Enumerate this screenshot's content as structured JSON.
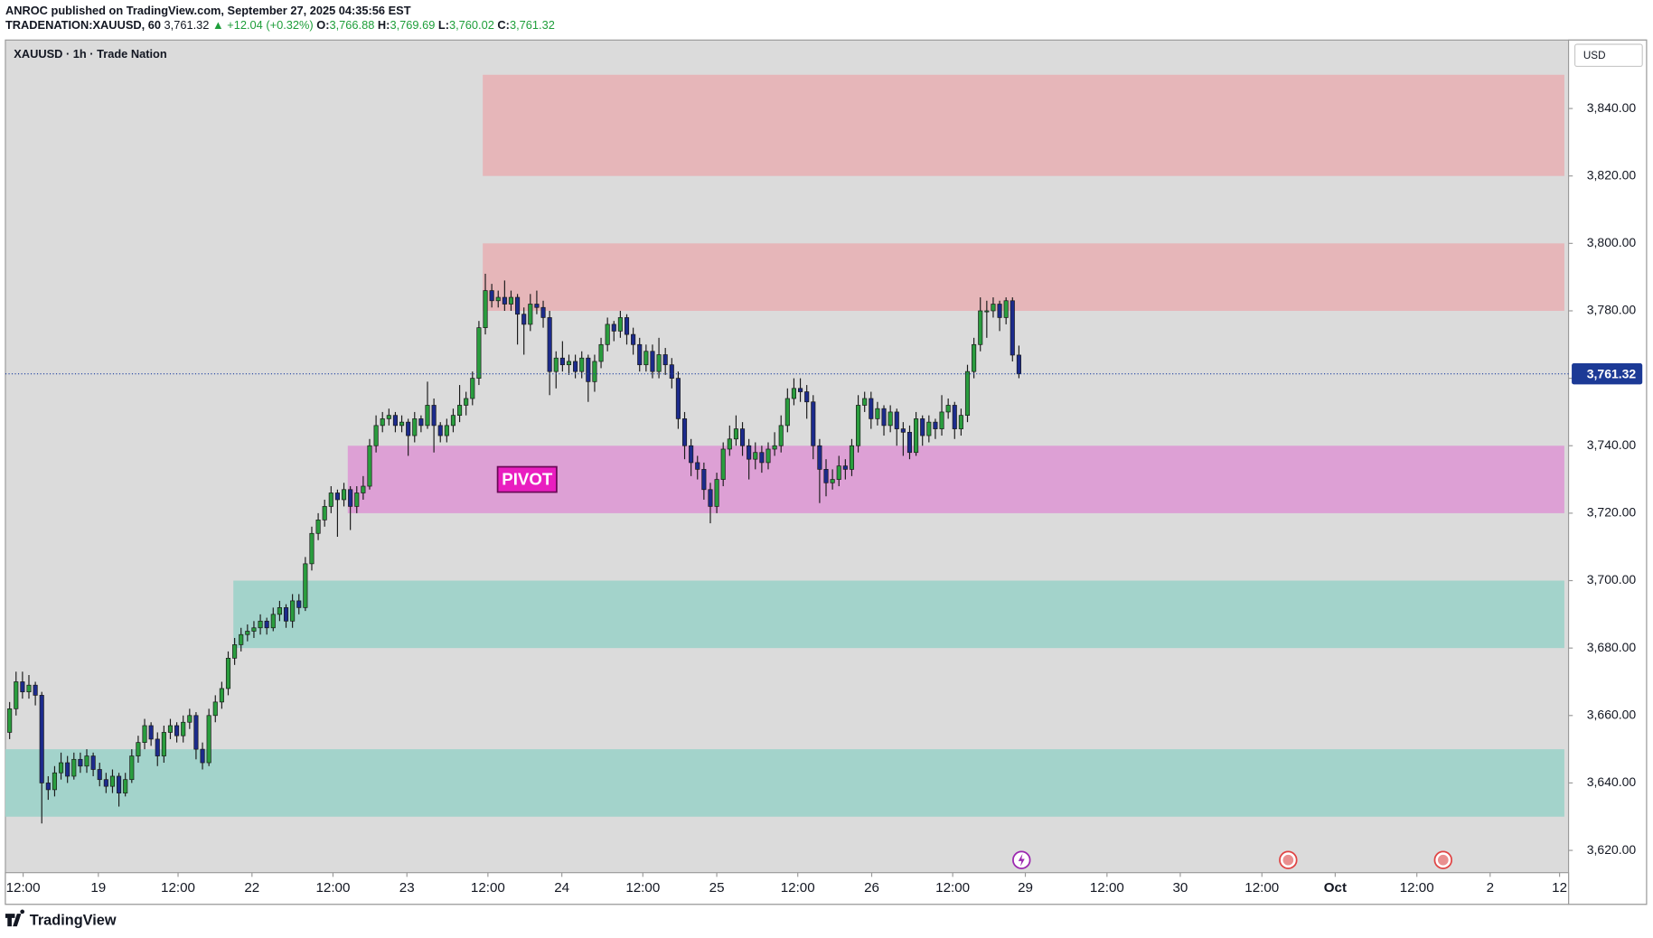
{
  "header": {
    "publisher": "ANROC published on TradingView.com, September 27, 2025 04:35:56 EST",
    "symbol": "TRADENATION:XAUUSD, 60",
    "last": "3,761.32",
    "change": "▲ +12.04 (+0.32%)",
    "o_label": "O:",
    "o": "3,766.88",
    "h_label": "H:",
    "h": "3,769.69",
    "l_label": "L:",
    "l": "3,760.02",
    "c_label": "C:",
    "c": "3,761.32"
  },
  "footer": {
    "brand": "TradingView"
  },
  "chart_data": {
    "type": "candlestick",
    "title": "XAUUSD · 1h · Trade Nation",
    "currency": "USD",
    "up_color": "#2a9d3e",
    "down_color": "#1c2b8c",
    "grid": false,
    "xlim": [
      -0.66,
      242.5
    ],
    "ylim": [
      3613.4,
      3860.3
    ],
    "yticks": [
      {
        "value": 3620,
        "label": "3,620.00"
      },
      {
        "value": 3640,
        "label": "3,640.00"
      },
      {
        "value": 3660,
        "label": "3,660.00"
      },
      {
        "value": 3680,
        "label": "3,680.00"
      },
      {
        "value": 3700,
        "label": "3,700.00"
      },
      {
        "value": 3720,
        "label": "3,720.00"
      },
      {
        "value": 3740,
        "label": "3,740.00"
      },
      {
        "value": 3760,
        "label": "3,760.00"
      },
      {
        "value": 3780,
        "label": "3,780.00"
      },
      {
        "value": 3800,
        "label": "3,800.00"
      },
      {
        "value": 3820,
        "label": "3,820.00"
      },
      {
        "value": 3840,
        "label": "3,840.00"
      }
    ],
    "xticks": [
      {
        "value": 2.1,
        "label": "12:00"
      },
      {
        "value": 13.8,
        "label": "19"
      },
      {
        "value": 26.2,
        "label": "12:00"
      },
      {
        "value": 37.7,
        "label": "22"
      },
      {
        "value": 50.3,
        "label": "12:00"
      },
      {
        "value": 61.8,
        "label": "23"
      },
      {
        "value": 74.4,
        "label": "12:00"
      },
      {
        "value": 85.9,
        "label": "24"
      },
      {
        "value": 98.5,
        "label": "12:00"
      },
      {
        "value": 110,
        "label": "25"
      },
      {
        "value": 122.6,
        "label": "12:00"
      },
      {
        "value": 134.1,
        "label": "26"
      },
      {
        "value": 146.7,
        "label": "12:00"
      },
      {
        "value": 158,
        "label": "29"
      },
      {
        "value": 170.7,
        "label": "12:00"
      },
      {
        "value": 182.1,
        "label": "30"
      },
      {
        "value": 194.8,
        "label": "12:00"
      },
      {
        "value": 206.2,
        "label": "Oct"
      },
      {
        "value": 218.9,
        "label": "12:00"
      },
      {
        "value": 230.3,
        "label": "2"
      },
      {
        "value": 241.1,
        "label": "12"
      }
    ],
    "last_price": {
      "value": 3761.32,
      "label": "3,761.32"
    },
    "zones": [
      {
        "x_from": 73.6,
        "ylim": [
          3820,
          3850
        ],
        "color": "#e6b6b9"
      },
      {
        "x_from": 73.6,
        "ylim": [
          3780,
          3800
        ],
        "color": "#e6b6b9"
      },
      {
        "x_from": 52.6,
        "ylim": [
          3720,
          3740
        ],
        "color": "#dda0d5",
        "label": "PIVOT",
        "label_x": 80.5,
        "label_y": 3730
      },
      {
        "x_from": 34.8,
        "ylim": [
          3680,
          3700
        ],
        "color": "#a3d3cb"
      },
      {
        "x_from": -0.66,
        "ylim": [
          3630,
          3650
        ],
        "color": "#a3d3cb"
      }
    ],
    "ohlc": [
      [
        3655,
        3664,
        3653,
        3662
      ],
      [
        3662,
        3673,
        3660,
        3670
      ],
      [
        3670,
        3673,
        3665,
        3667
      ],
      [
        3667,
        3672,
        3665,
        3669
      ],
      [
        3669,
        3670,
        3663,
        3666
      ],
      [
        3666,
        3667,
        3628,
        3640
      ],
      [
        3640,
        3642,
        3635,
        3638
      ],
      [
        3638,
        3645,
        3636,
        3643
      ],
      [
        3643,
        3649,
        3641,
        3646
      ],
      [
        3646,
        3648,
        3640,
        3642
      ],
      [
        3642,
        3649,
        3641,
        3647
      ],
      [
        3647,
        3649,
        3643,
        3645
      ],
      [
        3645,
        3650,
        3643,
        3648
      ],
      [
        3648,
        3649,
        3642,
        3644
      ],
      [
        3644,
        3646,
        3639,
        3641
      ],
      [
        3641,
        3643,
        3637,
        3639
      ],
      [
        3639,
        3644,
        3637,
        3642
      ],
      [
        3642,
        3643,
        3633,
        3637
      ],
      [
        3637,
        3643,
        3636,
        3641
      ],
      [
        3641,
        3650,
        3640,
        3648
      ],
      [
        3648,
        3654,
        3646,
        3652
      ],
      [
        3652,
        3659,
        3650,
        3657
      ],
      [
        3657,
        3658,
        3651,
        3653
      ],
      [
        3653,
        3655,
        3645,
        3648
      ],
      [
        3648,
        3657,
        3646,
        3655
      ],
      [
        3655,
        3659,
        3653,
        3657
      ],
      [
        3657,
        3658,
        3652,
        3654
      ],
      [
        3654,
        3660,
        3652,
        3658
      ],
      [
        3658,
        3662,
        3656,
        3660
      ],
      [
        3660,
        3661,
        3647,
        3650
      ],
      [
        3650,
        3652,
        3644,
        3646
      ],
      [
        3646,
        3662,
        3645,
        3660
      ],
      [
        3660,
        3666,
        3658,
        3664
      ],
      [
        3664,
        3670,
        3662,
        3668
      ],
      [
        3668,
        3679,
        3666,
        3677
      ],
      [
        3677,
        3683,
        3675,
        3681
      ],
      [
        3681,
        3686,
        3679,
        3684
      ],
      [
        3684,
        3687,
        3682,
        3685
      ],
      [
        3685,
        3688,
        3683,
        3686
      ],
      [
        3686,
        3690,
        3684,
        3688
      ],
      [
        3688,
        3689,
        3684,
        3686
      ],
      [
        3686,
        3692,
        3685,
        3690
      ],
      [
        3690,
        3694,
        3688,
        3692
      ],
      [
        3692,
        3693,
        3686,
        3688
      ],
      [
        3688,
        3696,
        3686,
        3694
      ],
      [
        3694,
        3696,
        3690,
        3692
      ],
      [
        3692,
        3707,
        3691,
        3705
      ],
      [
        3705,
        3716,
        3703,
        3714
      ],
      [
        3714,
        3720,
        3712,
        3718
      ],
      [
        3718,
        3724,
        3716,
        3722
      ],
      [
        3722,
        3728,
        3720,
        3726
      ],
      [
        3726,
        3727,
        3713,
        3724
      ],
      [
        3724,
        3729,
        3722,
        3727
      ],
      [
        3727,
        3728,
        3715,
        3722
      ],
      [
        3722,
        3728,
        3720,
        3726
      ],
      [
        3726,
        3731,
        3724,
        3728
      ],
      [
        3728,
        3742,
        3727,
        3740
      ],
      [
        3740,
        3749,
        3738,
        3746
      ],
      [
        3746,
        3750,
        3744,
        3748
      ],
      [
        3748,
        3751,
        3746,
        3749
      ],
      [
        3749,
        3750,
        3744,
        3746
      ],
      [
        3746,
        3749,
        3744,
        3747
      ],
      [
        3747,
        3748,
        3737,
        3743
      ],
      [
        3743,
        3750,
        3741,
        3748
      ],
      [
        3748,
        3749,
        3744,
        3746
      ],
      [
        3746,
        3759,
        3745,
        3752
      ],
      [
        3752,
        3754,
        3738,
        3746
      ],
      [
        3746,
        3747,
        3741,
        3743
      ],
      [
        3743,
        3748,
        3741,
        3746
      ],
      [
        3746,
        3751,
        3744,
        3749
      ],
      [
        3749,
        3758,
        3747,
        3752
      ],
      [
        3752,
        3756,
        3749,
        3754
      ],
      [
        3754,
        3762,
        3752,
        3760
      ],
      [
        3760,
        3777,
        3758,
        3775
      ],
      [
        3775,
        3791,
        3773,
        3786
      ],
      [
        3786,
        3788,
        3781,
        3783
      ],
      [
        3783,
        3786,
        3781,
        3784
      ],
      [
        3784,
        3789,
        3780,
        3782
      ],
      [
        3782,
        3786,
        3780,
        3784
      ],
      [
        3784,
        3785,
        3770,
        3779
      ],
      [
        3779,
        3781,
        3767,
        3776
      ],
      [
        3776,
        3785,
        3774,
        3782
      ],
      [
        3782,
        3786,
        3779,
        3781
      ],
      [
        3781,
        3783,
        3775,
        3778
      ],
      [
        3778,
        3780,
        3755,
        3762
      ],
      [
        3762,
        3768,
        3757,
        3766
      ],
      [
        3766,
        3771,
        3762,
        3764
      ],
      [
        3764,
        3767,
        3761,
        3765
      ],
      [
        3765,
        3767,
        3760,
        3762
      ],
      [
        3762,
        3768,
        3760,
        3766
      ],
      [
        3766,
        3767,
        3753,
        3759
      ],
      [
        3759,
        3767,
        3756,
        3765
      ],
      [
        3765,
        3772,
        3763,
        3770
      ],
      [
        3770,
        3778,
        3768,
        3776
      ],
      [
        3776,
        3777,
        3771,
        3774
      ],
      [
        3774,
        3780,
        3772,
        3778
      ],
      [
        3778,
        3779,
        3770,
        3773
      ],
      [
        3773,
        3775,
        3767,
        3770
      ],
      [
        3770,
        3772,
        3762,
        3764
      ],
      [
        3764,
        3770,
        3762,
        3768
      ],
      [
        3768,
        3770,
        3760,
        3762
      ],
      [
        3762,
        3772,
        3760,
        3767
      ],
      [
        3767,
        3769,
        3761,
        3764
      ],
      [
        3764,
        3766,
        3757,
        3760
      ],
      [
        3760,
        3762,
        3745,
        3748
      ],
      [
        3748,
        3750,
        3736,
        3740
      ],
      [
        3740,
        3742,
        3731,
        3735
      ],
      [
        3735,
        3737,
        3730,
        3733
      ],
      [
        3733,
        3735,
        3724,
        3727
      ],
      [
        3727,
        3729,
        3717,
        3722
      ],
      [
        3722,
        3732,
        3720,
        3730
      ],
      [
        3730,
        3741,
        3728,
        3739
      ],
      [
        3739,
        3746,
        3737,
        3742
      ],
      [
        3742,
        3749,
        3740,
        3745
      ],
      [
        3745,
        3747,
        3737,
        3740
      ],
      [
        3740,
        3742,
        3730,
        3736
      ],
      [
        3736,
        3741,
        3733,
        3738
      ],
      [
        3738,
        3740,
        3732,
        3735
      ],
      [
        3735,
        3741,
        3733,
        3739
      ],
      [
        3739,
        3744,
        3737,
        3740
      ],
      [
        3740,
        3749,
        3738,
        3746
      ],
      [
        3746,
        3757,
        3744,
        3754
      ],
      [
        3754,
        3760,
        3752,
        3757
      ],
      [
        3757,
        3760,
        3753,
        3756
      ],
      [
        3756,
        3758,
        3748,
        3753
      ],
      [
        3753,
        3755,
        3736,
        3740
      ],
      [
        3740,
        3742,
        3723,
        3733
      ],
      [
        3733,
        3736,
        3725,
        3729
      ],
      [
        3729,
        3733,
        3727,
        3730
      ],
      [
        3730,
        3737,
        3728,
        3734
      ],
      [
        3734,
        3736,
        3730,
        3733
      ],
      [
        3733,
        3742,
        3731,
        3740
      ],
      [
        3740,
        3755,
        3738,
        3752
      ],
      [
        3752,
        3756,
        3750,
        3754
      ],
      [
        3754,
        3756,
        3745,
        3748
      ],
      [
        3748,
        3753,
        3746,
        3751
      ],
      [
        3751,
        3752,
        3743,
        3746
      ],
      [
        3746,
        3752,
        3744,
        3750
      ],
      [
        3750,
        3751,
        3740,
        3745
      ],
      [
        3745,
        3747,
        3737,
        3744
      ],
      [
        3744,
        3746,
        3736,
        3738
      ],
      [
        3738,
        3750,
        3737,
        3748
      ],
      [
        3748,
        3749,
        3740,
        3743
      ],
      [
        3743,
        3749,
        3741,
        3747
      ],
      [
        3747,
        3748,
        3742,
        3745
      ],
      [
        3745,
        3755,
        3743,
        3750
      ],
      [
        3750,
        3754,
        3748,
        3752
      ],
      [
        3752,
        3753,
        3742,
        3745
      ],
      [
        3745,
        3751,
        3743,
        3749
      ],
      [
        3749,
        3764,
        3747,
        3762
      ],
      [
        3762,
        3772,
        3760,
        3770
      ],
      [
        3770,
        3784,
        3768,
        3780
      ],
      [
        3780,
        3783,
        3772,
        3780
      ],
      [
        3780,
        3784,
        3778,
        3782
      ],
      [
        3782,
        3783,
        3774,
        3778
      ],
      [
        3778,
        3784,
        3776,
        3783
      ],
      [
        3783,
        3784,
        3765,
        3766.88
      ],
      [
        3766.88,
        3769.69,
        3760.02,
        3761.32
      ]
    ]
  }
}
